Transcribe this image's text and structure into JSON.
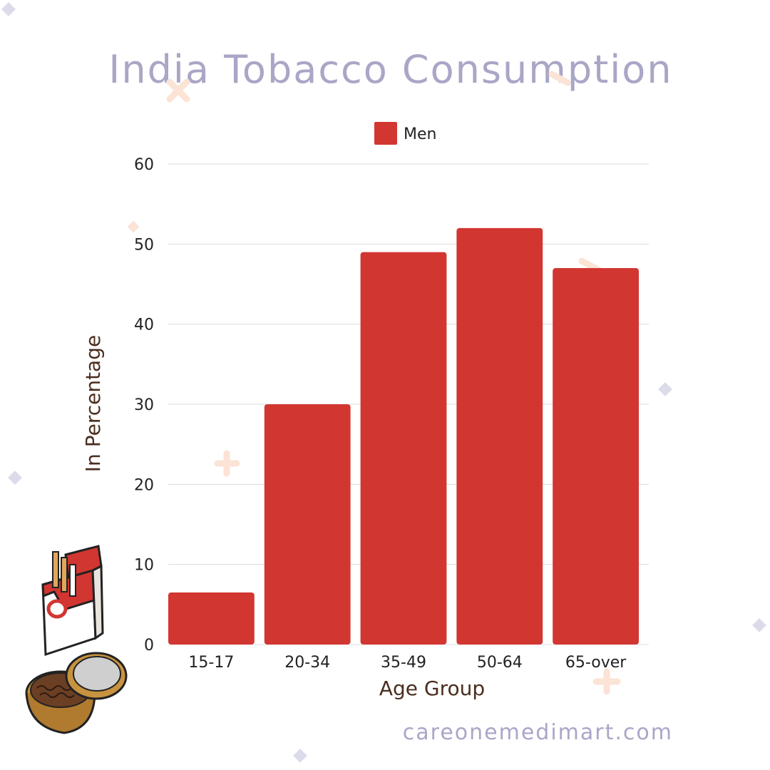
{
  "title": "India Tobacco Consumption",
  "footer_text": "careonemedimart.com",
  "colors": {
    "bar": "#d23631",
    "title": "#a9a6c6",
    "axis_title": "#4a2e1e",
    "grid": "#dcdcdc",
    "decor_diamond": "#dcdbea",
    "decor_cross": "#fbe3d6"
  },
  "chart_data": {
    "type": "bar",
    "title": "India Tobacco Consumption",
    "xlabel": "Age Group",
    "ylabel": "In Percentage",
    "categories": [
      "15-17",
      "20-34",
      "35-49",
      "50-64",
      "65-over"
    ],
    "series": [
      {
        "name": "Men",
        "values": [
          6.5,
          30,
          49,
          52,
          47
        ]
      }
    ],
    "ylim": [
      0,
      60
    ],
    "yticks": [
      0,
      10,
      20,
      30,
      40,
      50,
      60
    ],
    "grid": true,
    "legend": "top-center"
  }
}
